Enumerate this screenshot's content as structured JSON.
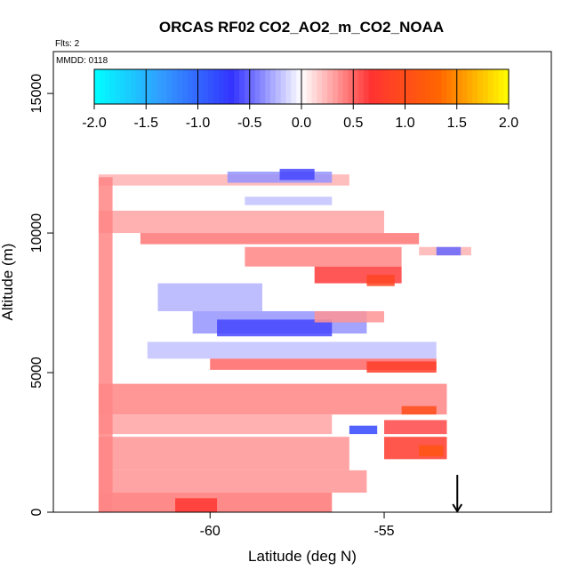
{
  "chart_data": {
    "type": "heatmap",
    "title": "ORCAS RF02 CO2_AO2_m_CO2_NOAA",
    "flights_label": "Flts: 2",
    "date_label": "MMDD: 0118",
    "xlabel": "Latitude (deg N)",
    "ylabel": "Altitude (m)",
    "xlim": [
      -64.5,
      -50.2
    ],
    "ylim": [
      0,
      16500
    ],
    "x_ticks": [
      -60,
      -55
    ],
    "x_tick_labels": [
      "-60",
      "-55"
    ],
    "y_ticks": [
      0,
      5000,
      10000,
      15000
    ],
    "y_tick_labels": [
      "0",
      "5000",
      "10000",
      "15000"
    ],
    "colorbar": {
      "range": [
        -2.0,
        2.0
      ],
      "ticks": [
        -2.0,
        -1.5,
        -1.0,
        -0.5,
        0.0,
        0.5,
        1.0,
        1.5,
        2.0
      ],
      "tick_labels": [
        "-2.0",
        "-1.5",
        "-1.0",
        "-0.5",
        "0.0",
        "0.5",
        "1.0",
        "1.5",
        "2.0"
      ],
      "colors": [
        "#00ffff",
        "#3399ff",
        "#3333ff",
        "#ffffff",
        "#ff3333",
        "#ff6600",
        "#ffff00"
      ]
    },
    "arrow_marker": {
      "x": -52.9,
      "y_top": 700,
      "y_bottom": 0
    },
    "bands": [
      {
        "x0": -63.2,
        "x1": -56.0,
        "y0": 11700,
        "y1": 12100,
        "value": 0.25
      },
      {
        "x0": -59.5,
        "x1": -56.5,
        "y0": 11800,
        "y1": 12200,
        "value": -0.35
      },
      {
        "x0": -58.0,
        "x1": -57.0,
        "y0": 11900,
        "y1": 12300,
        "value": -0.6
      },
      {
        "x0": -59.0,
        "x1": -56.5,
        "y0": 11000,
        "y1": 11300,
        "value": -0.2
      },
      {
        "x0": -63.2,
        "x1": -55.0,
        "y0": 10000,
        "y1": 10800,
        "value": 0.3
      },
      {
        "x0": -62.0,
        "x1": -54.0,
        "y0": 9600,
        "y1": 10000,
        "value": 0.45
      },
      {
        "x0": -59.0,
        "x1": -54.5,
        "y0": 8800,
        "y1": 9500,
        "value": 0.4
      },
      {
        "x0": -57.0,
        "x1": -54.5,
        "y0": 8200,
        "y1": 8800,
        "value": 0.65
      },
      {
        "x0": -55.5,
        "x1": -54.7,
        "y0": 8100,
        "y1": 8500,
        "value": 0.9
      },
      {
        "x0": -54.0,
        "x1": -52.5,
        "y0": 9200,
        "y1": 9500,
        "value": 0.25
      },
      {
        "x0": -53.5,
        "x1": -52.8,
        "y0": 9200,
        "y1": 9500,
        "value": -0.5
      },
      {
        "x0": -61.5,
        "x1": -58.5,
        "y0": 7200,
        "y1": 8200,
        "value": -0.25
      },
      {
        "x0": -60.5,
        "x1": -55.5,
        "y0": 6400,
        "y1": 7200,
        "value": -0.35
      },
      {
        "x0": -59.8,
        "x1": -56.5,
        "y0": 6300,
        "y1": 6900,
        "value": -0.6
      },
      {
        "x0": -57.0,
        "x1": -55.0,
        "y0": 6800,
        "y1": 7200,
        "value": 0.35
      },
      {
        "x0": -61.8,
        "x1": -53.5,
        "y0": 5500,
        "y1": 6100,
        "value": -0.2
      },
      {
        "x0": -60.0,
        "x1": -53.5,
        "y0": 5100,
        "y1": 5500,
        "value": 0.5
      },
      {
        "x0": -55.5,
        "x1": -53.5,
        "y0": 5000,
        "y1": 5400,
        "value": 0.8
      },
      {
        "x0": -63.2,
        "x1": -53.2,
        "y0": 3500,
        "y1": 4600,
        "value": 0.4
      },
      {
        "x0": -54.5,
        "x1": -53.5,
        "y0": 3500,
        "y1": 3800,
        "value": 1.0
      },
      {
        "x0": -63.2,
        "x1": -56.5,
        "y0": 2800,
        "y1": 3500,
        "value": 0.3
      },
      {
        "x0": -55.0,
        "x1": -53.2,
        "y0": 2800,
        "y1": 3300,
        "value": 0.6
      },
      {
        "x0": -56.0,
        "x1": -55.2,
        "y0": 2800,
        "y1": 3100,
        "value": -0.8
      },
      {
        "x0": -63.2,
        "x1": -56.0,
        "y0": 1500,
        "y1": 2700,
        "value": 0.35
      },
      {
        "x0": -55.0,
        "x1": -53.2,
        "y0": 1900,
        "y1": 2700,
        "value": 0.75
      },
      {
        "x0": -54.0,
        "x1": -53.3,
        "y0": 2000,
        "y1": 2400,
        "value": 1.1
      },
      {
        "x0": -63.2,
        "x1": -55.5,
        "y0": 700,
        "y1": 1500,
        "value": 0.35
      },
      {
        "x0": -63.2,
        "x1": -56.5,
        "y0": 0,
        "y1": 700,
        "value": 0.45
      },
      {
        "x0": -61.0,
        "x1": -59.8,
        "y0": 0,
        "y1": 500,
        "value": 0.7
      },
      {
        "x0": -63.2,
        "x1": -62.8,
        "y0": 0,
        "y1": 12000,
        "value": 0.4
      }
    ]
  }
}
